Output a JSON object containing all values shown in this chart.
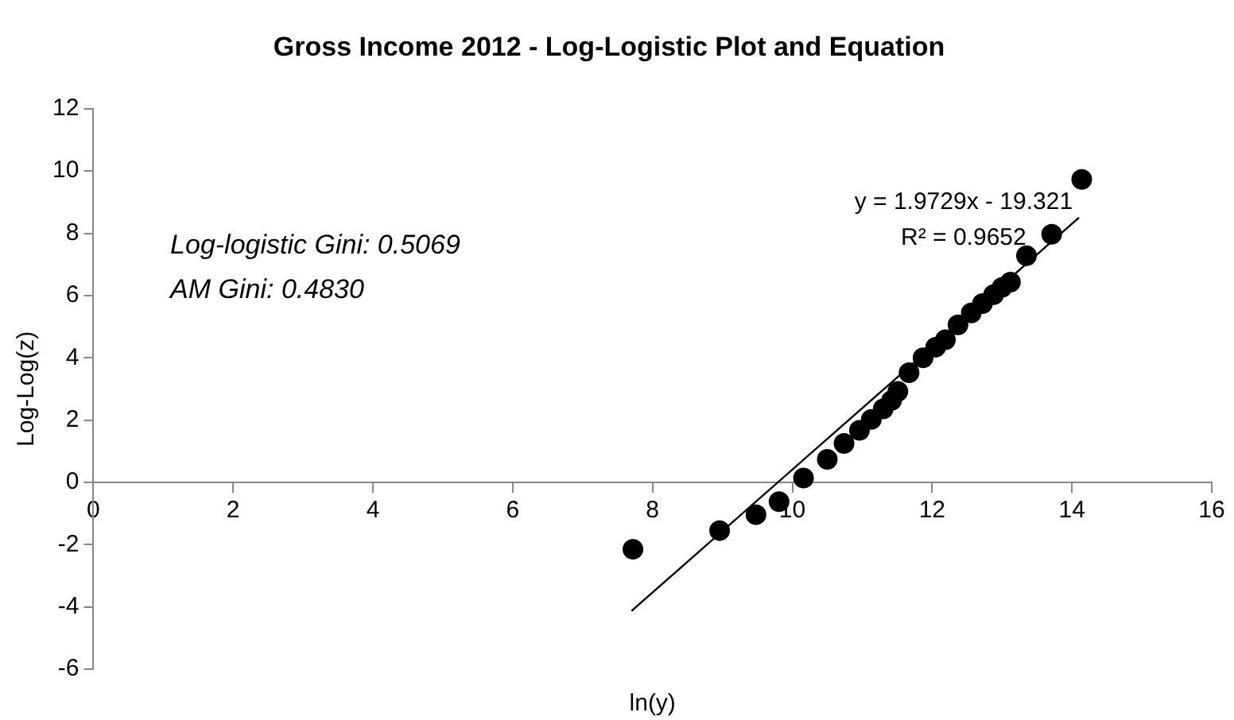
{
  "chart_data": {
    "type": "scatter",
    "title": "Gross Income 2012 - Log-Logistic Plot and Equation",
    "xlabel": "ln(y)",
    "ylabel": "Log-Log(z)",
    "xlim": [
      0,
      16
    ],
    "xticks": [
      0,
      2,
      4,
      6,
      8,
      10,
      12,
      14,
      16
    ],
    "ylim": [
      -6,
      12
    ],
    "yticks": [
      -6,
      -4,
      -2,
      0,
      2,
      4,
      6,
      8,
      10,
      12
    ],
    "grid": false,
    "legend": false,
    "marker": "circle",
    "series": [
      {
        "color": "#000000",
        "x": [
          7.72,
          8.96,
          9.48,
          9.81,
          10.16,
          10.5,
          10.74,
          10.96,
          11.13,
          11.3,
          11.42,
          11.51,
          11.67,
          11.87,
          12.05,
          12.19,
          12.37,
          12.56,
          12.72,
          12.88,
          13.0,
          13.12,
          13.35,
          13.71,
          14.14
        ],
        "values": [
          -2.15,
          -1.55,
          -1.04,
          -0.62,
          0.14,
          0.74,
          1.25,
          1.67,
          2.02,
          2.36,
          2.63,
          2.92,
          3.52,
          4.0,
          4.34,
          4.58,
          5.06,
          5.44,
          5.74,
          6.03,
          6.26,
          6.43,
          7.28,
          7.97,
          9.73
        ]
      },
      {
        "type": "line",
        "color": "#000000",
        "marker": "none",
        "line_style": "solid",
        "x": [
          7.7,
          14.1
        ],
        "values": [
          -4.13,
          8.5
        ]
      }
    ],
    "annotations": [
      "y = 1.9729x - 19.321",
      "R² = 0.9652",
      "Log-logistic Gini: 0.5069",
      "AM Gini: 0.4830"
    ]
  }
}
